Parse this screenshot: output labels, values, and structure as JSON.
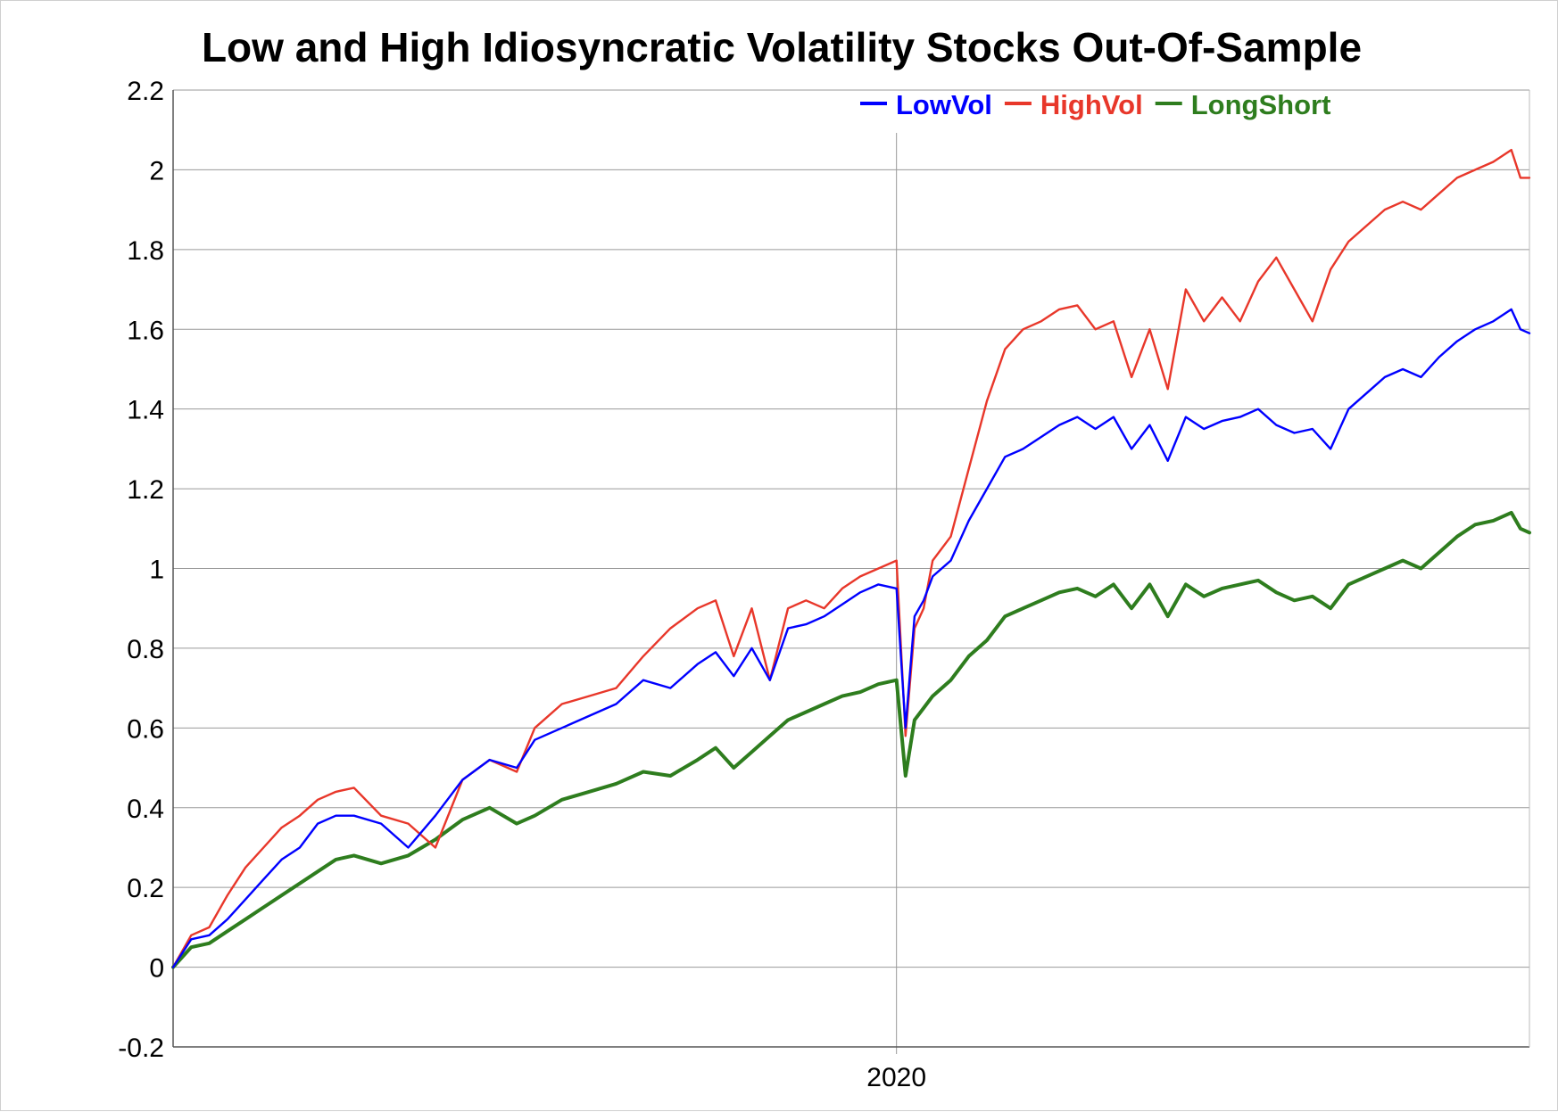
{
  "chart_data": {
    "type": "line",
    "title": "Low and High Idiosyncratic Volatility Stocks Out-Of-Sample",
    "xlabel": "",
    "ylabel": "",
    "ylim": [
      -0.2,
      2.2
    ],
    "xlim": [
      2016.0,
      2023.5
    ],
    "yticks": [
      "-0.2",
      "0",
      "0.2",
      "0.4",
      "0.6",
      "0.8",
      "1",
      "1.2",
      "1.4",
      "1.6",
      "1.8",
      "2",
      "2.2"
    ],
    "ytick_values": [
      -0.2,
      0,
      0.2,
      0.4,
      0.6,
      0.8,
      1.0,
      1.2,
      1.4,
      1.6,
      1.8,
      2.0,
      2.2
    ],
    "xticks": [
      "2020"
    ],
    "xtick_values": [
      2020.0
    ],
    "grid": true,
    "legend_position": "top-right",
    "series": [
      {
        "name": "LowVol",
        "color": "#0000ff",
        "x": [
          2016.0,
          2016.1,
          2016.2,
          2016.3,
          2016.4,
          2016.5,
          2016.6,
          2016.7,
          2016.8,
          2016.9,
          2017.0,
          2017.15,
          2017.3,
          2017.45,
          2017.6,
          2017.75,
          2017.9,
          2018.0,
          2018.15,
          2018.3,
          2018.45,
          2018.6,
          2018.75,
          2018.9,
          2019.0,
          2019.1,
          2019.2,
          2019.3,
          2019.4,
          2019.5,
          2019.6,
          2019.7,
          2019.8,
          2019.9,
          2020.0,
          2020.05,
          2020.1,
          2020.15,
          2020.2,
          2020.3,
          2020.4,
          2020.5,
          2020.6,
          2020.7,
          2020.8,
          2020.9,
          2021.0,
          2021.1,
          2021.2,
          2021.3,
          2021.4,
          2021.5,
          2021.6,
          2021.7,
          2021.8,
          2021.9,
          2022.0,
          2022.1,
          2022.2,
          2022.3,
          2022.4,
          2022.5,
          2022.6,
          2022.7,
          2022.8,
          2022.9,
          2023.0,
          2023.1,
          2023.2,
          2023.3,
          2023.4,
          2023.45,
          2023.5
        ],
        "values": [
          0.0,
          0.07,
          0.08,
          0.12,
          0.17,
          0.22,
          0.27,
          0.3,
          0.36,
          0.38,
          0.38,
          0.36,
          0.3,
          0.38,
          0.47,
          0.52,
          0.5,
          0.57,
          0.6,
          0.63,
          0.66,
          0.72,
          0.7,
          0.76,
          0.79,
          0.73,
          0.8,
          0.72,
          0.85,
          0.86,
          0.88,
          0.91,
          0.94,
          0.96,
          0.95,
          0.6,
          0.88,
          0.92,
          0.98,
          1.02,
          1.12,
          1.2,
          1.28,
          1.3,
          1.33,
          1.36,
          1.38,
          1.35,
          1.38,
          1.3,
          1.36,
          1.27,
          1.38,
          1.35,
          1.37,
          1.38,
          1.4,
          1.36,
          1.34,
          1.35,
          1.3,
          1.4,
          1.44,
          1.48,
          1.5,
          1.48,
          1.53,
          1.57,
          1.6,
          1.62,
          1.65,
          1.6,
          1.59
        ]
      },
      {
        "name": "HighVol",
        "color": "#e8372a",
        "x": [
          2016.0,
          2016.1,
          2016.2,
          2016.3,
          2016.4,
          2016.5,
          2016.6,
          2016.7,
          2016.8,
          2016.9,
          2017.0,
          2017.15,
          2017.3,
          2017.45,
          2017.6,
          2017.75,
          2017.9,
          2018.0,
          2018.15,
          2018.3,
          2018.45,
          2018.6,
          2018.75,
          2018.9,
          2019.0,
          2019.1,
          2019.2,
          2019.3,
          2019.4,
          2019.5,
          2019.6,
          2019.7,
          2019.8,
          2019.9,
          2020.0,
          2020.05,
          2020.1,
          2020.15,
          2020.2,
          2020.3,
          2020.4,
          2020.5,
          2020.6,
          2020.7,
          2020.8,
          2020.9,
          2021.0,
          2021.1,
          2021.2,
          2021.3,
          2021.4,
          2021.5,
          2021.6,
          2021.7,
          2021.8,
          2021.9,
          2022.0,
          2022.1,
          2022.2,
          2022.3,
          2022.4,
          2022.5,
          2022.6,
          2022.7,
          2022.8,
          2022.9,
          2023.0,
          2023.1,
          2023.2,
          2023.3,
          2023.4,
          2023.45,
          2023.5
        ],
        "values": [
          0.0,
          0.08,
          0.1,
          0.18,
          0.25,
          0.3,
          0.35,
          0.38,
          0.42,
          0.44,
          0.45,
          0.38,
          0.36,
          0.3,
          0.47,
          0.52,
          0.49,
          0.6,
          0.66,
          0.68,
          0.7,
          0.78,
          0.85,
          0.9,
          0.92,
          0.78,
          0.9,
          0.72,
          0.9,
          0.92,
          0.9,
          0.95,
          0.98,
          1.0,
          1.02,
          0.58,
          0.85,
          0.9,
          1.02,
          1.08,
          1.25,
          1.42,
          1.55,
          1.6,
          1.62,
          1.65,
          1.66,
          1.6,
          1.62,
          1.48,
          1.6,
          1.45,
          1.7,
          1.62,
          1.68,
          1.62,
          1.72,
          1.78,
          1.7,
          1.62,
          1.75,
          1.82,
          1.86,
          1.9,
          1.92,
          1.9,
          1.94,
          1.98,
          2.0,
          2.02,
          2.05,
          1.98,
          1.98
        ]
      },
      {
        "name": "LongShort",
        "color": "#2e7d1e",
        "x": [
          2016.0,
          2016.1,
          2016.2,
          2016.3,
          2016.4,
          2016.5,
          2016.6,
          2016.7,
          2016.8,
          2016.9,
          2017.0,
          2017.15,
          2017.3,
          2017.45,
          2017.6,
          2017.75,
          2017.9,
          2018.0,
          2018.15,
          2018.3,
          2018.45,
          2018.6,
          2018.75,
          2018.9,
          2019.0,
          2019.1,
          2019.2,
          2019.3,
          2019.4,
          2019.5,
          2019.6,
          2019.7,
          2019.8,
          2019.9,
          2020.0,
          2020.05,
          2020.1,
          2020.15,
          2020.2,
          2020.3,
          2020.4,
          2020.5,
          2020.6,
          2020.7,
          2020.8,
          2020.9,
          2021.0,
          2021.1,
          2021.2,
          2021.3,
          2021.4,
          2021.5,
          2021.6,
          2021.7,
          2021.8,
          2021.9,
          2022.0,
          2022.1,
          2022.2,
          2022.3,
          2022.4,
          2022.5,
          2022.6,
          2022.7,
          2022.8,
          2022.9,
          2023.0,
          2023.1,
          2023.2,
          2023.3,
          2023.4,
          2023.45,
          2023.5
        ],
        "values": [
          0.0,
          0.05,
          0.06,
          0.09,
          0.12,
          0.15,
          0.18,
          0.21,
          0.24,
          0.27,
          0.28,
          0.26,
          0.28,
          0.32,
          0.37,
          0.4,
          0.36,
          0.38,
          0.42,
          0.44,
          0.46,
          0.49,
          0.48,
          0.52,
          0.55,
          0.5,
          0.54,
          0.58,
          0.62,
          0.64,
          0.66,
          0.68,
          0.69,
          0.71,
          0.72,
          0.48,
          0.62,
          0.65,
          0.68,
          0.72,
          0.78,
          0.82,
          0.88,
          0.9,
          0.92,
          0.94,
          0.95,
          0.93,
          0.96,
          0.9,
          0.96,
          0.88,
          0.96,
          0.93,
          0.95,
          0.96,
          0.97,
          0.94,
          0.92,
          0.93,
          0.9,
          0.96,
          0.98,
          1.0,
          1.02,
          1.0,
          1.04,
          1.08,
          1.11,
          1.12,
          1.14,
          1.1,
          1.09
        ]
      }
    ]
  }
}
